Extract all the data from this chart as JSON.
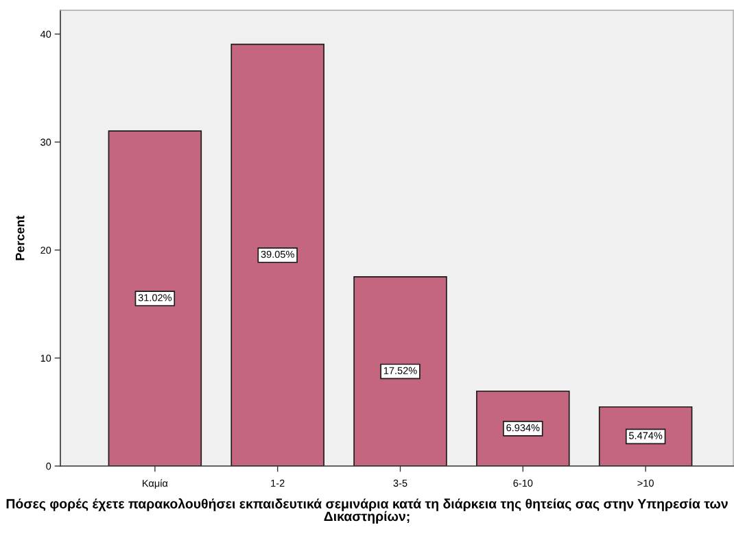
{
  "chart_data": {
    "type": "bar",
    "xlabel": "Πόσες φορές έχετε παρακολουθήσει εκπαιδευτικά σεμινάρια κατά τη διάρκεια της θητείας σας στην Υπηρεσία των Δικαστηρίων;",
    "ylabel": "Percent",
    "categories": [
      "Καμία",
      "1-2",
      "3-5",
      "6-10",
      ">10"
    ],
    "values": [
      31.02,
      39.05,
      17.52,
      6.934,
      5.474
    ],
    "color": "#c46680",
    "value_labels": [
      "31.02%",
      "39.05%",
      "17.52%",
      "6.934%",
      "5.474%"
    ],
    "ylim": [
      0,
      42.2
    ],
    "yticks": [
      0,
      10,
      20,
      30,
      40
    ]
  }
}
